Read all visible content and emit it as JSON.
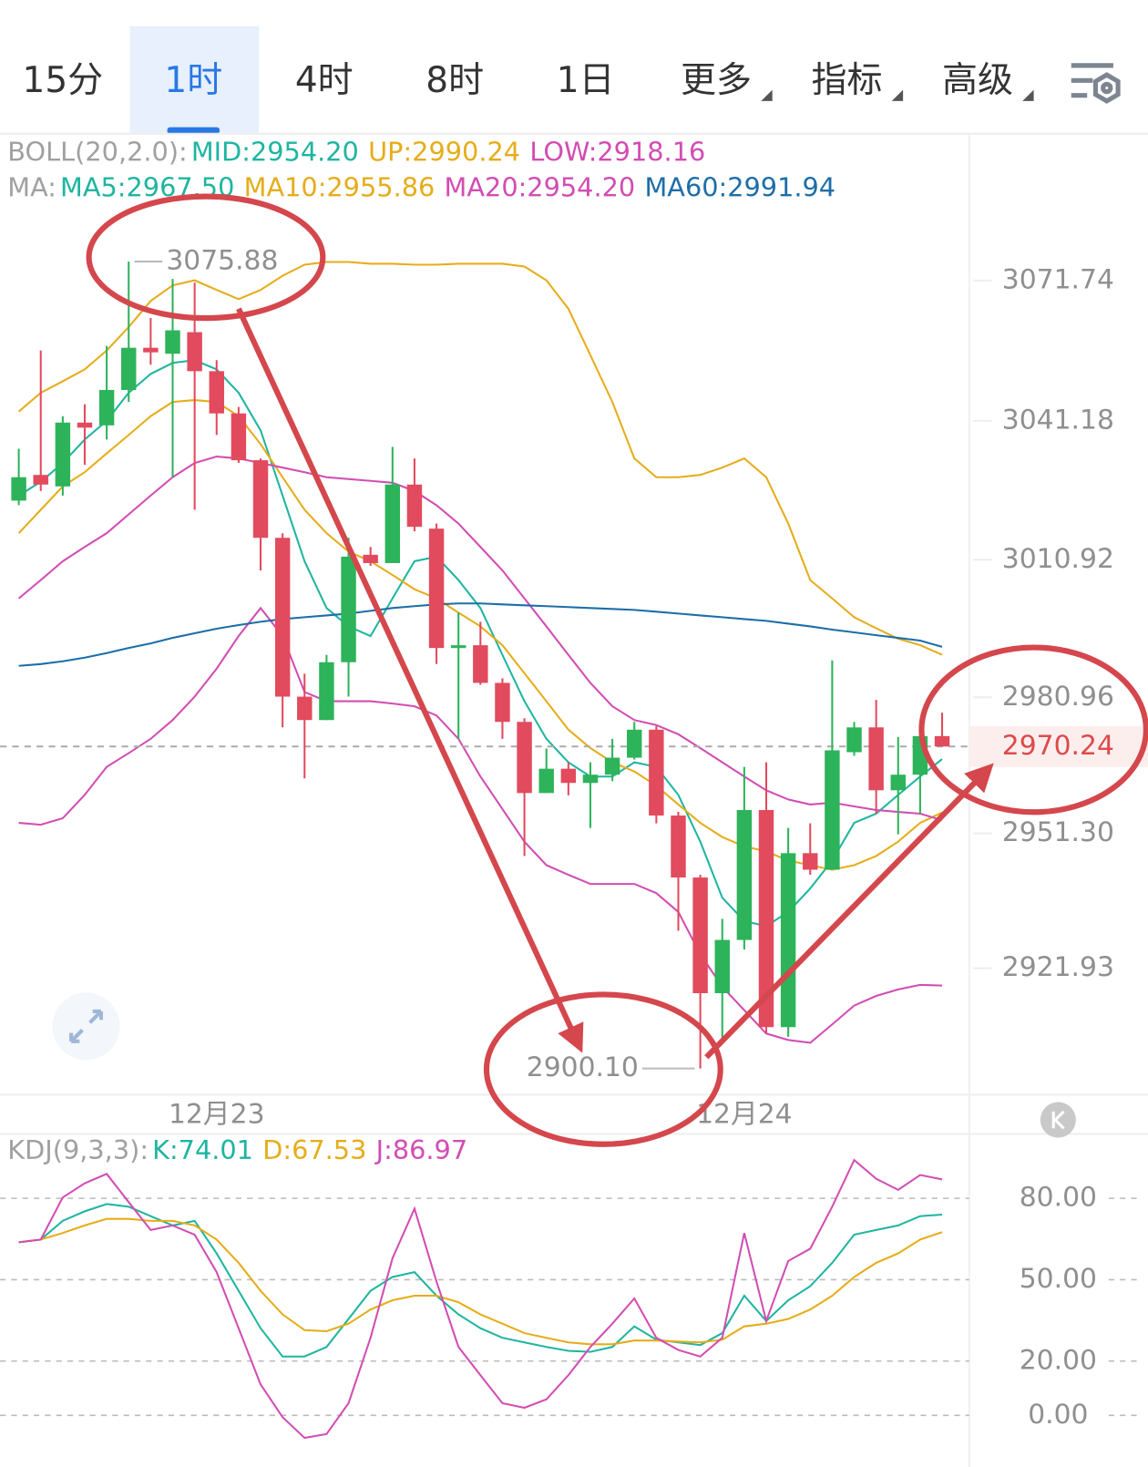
{
  "tabs": [
    {
      "label": "15分"
    },
    {
      "label": "1时"
    },
    {
      "label": "4时"
    },
    {
      "label": "8时"
    },
    {
      "label": "1日"
    },
    {
      "label": "更多",
      "menu": true
    },
    {
      "label": "指标",
      "menu": true
    },
    {
      "label": "高级",
      "menu": true
    }
  ],
  "active_tab": 1,
  "chart_data": [
    {
      "type": "candlestick",
      "categories": [
        null,
        null,
        null,
        null,
        null,
        null,
        null,
        null,
        null,
        "12月23",
        null,
        null,
        null,
        null,
        null,
        null,
        null,
        null,
        null,
        null,
        null,
        null,
        null,
        null,
        null,
        null,
        null,
        null,
        null,
        null,
        null,
        null,
        null,
        "12月24",
        null,
        null,
        null,
        null,
        null,
        null,
        null,
        null,
        null
      ],
      "values": [
        [
          3023.8,
          3035.1,
          3022.8,
          3028.9
        ],
        [
          3029.4,
          3056.5,
          3025.9,
          3027.3
        ],
        [
          3026.9,
          3042.2,
          3024.9,
          3040.8
        ],
        [
          3040.8,
          3044.8,
          3031.6,
          3039.7
        ],
        [
          3040.2,
          3057.5,
          3037.1,
          3047.9
        ],
        [
          3047.9,
          3075.88,
          3045.3,
          3057.1
        ],
        [
          3057.1,
          3063.6,
          3053.4,
          3056.1
        ],
        [
          3055.8,
          3072.1,
          3028.9,
          3060.9
        ],
        [
          3060.5,
          3071.3,
          3021.8,
          3052.0
        ],
        [
          3052.0,
          3054.4,
          3038.1,
          3042.8
        ],
        [
          3042.8,
          3044.2,
          3032.0,
          3032.6
        ],
        [
          3032.6,
          3033.0,
          3008.6,
          3015.7
        ],
        [
          3015.7,
          3016.7,
          2974.4,
          2981.1
        ],
        [
          2981.1,
          2986.1,
          2963.3,
          2976.0
        ],
        [
          2976.0,
          2990.2,
          2976.0,
          2988.6
        ],
        [
          2988.6,
          3015.7,
          2981.1,
          3011.6
        ],
        [
          3012.0,
          3013.7,
          3009.6,
          3010.2
        ],
        [
          3010.2,
          3035.5,
          3010.2,
          3027.3
        ],
        [
          3027.3,
          3033.0,
          3017.1,
          3018.1
        ],
        [
          3017.7,
          3018.8,
          2988.2,
          2991.7
        ],
        [
          2991.7,
          2999.4,
          2971.9,
          2992.3
        ],
        [
          2992.3,
          2997.4,
          2983.7,
          2984.1
        ],
        [
          2984.1,
          2985.1,
          2971.9,
          2975.6
        ],
        [
          2975.6,
          2976.4,
          2946.4,
          2960.1
        ],
        [
          2960.1,
          2969.8,
          2960.1,
          2965.4
        ],
        [
          2965.4,
          2966.8,
          2959.6,
          2962.3
        ],
        [
          2962.3,
          2966.8,
          2952.5,
          2964.1
        ],
        [
          2964.1,
          2971.9,
          2962.7,
          2967.8
        ],
        [
          2967.8,
          2975.6,
          2967.4,
          2973.9
        ],
        [
          2973.9,
          2974.7,
          2953.5,
          2955.2
        ],
        [
          2955.2,
          2956.0,
          2930.1,
          2941.7
        ],
        [
          2941.7,
          2942.3,
          2900.1,
          2916.5
        ],
        [
          2916.5,
          2932.7,
          2906.7,
          2928.1
        ],
        [
          2928.1,
          2965.8,
          2926.0,
          2956.4
        ],
        [
          2956.4,
          2966.8,
          2907.7,
          2909.1
        ],
        [
          2909.1,
          2952.5,
          2907.0,
          2947.0
        ],
        [
          2947.0,
          2953.5,
          2942.3,
          2943.4
        ],
        [
          2943.4,
          2989.0,
          2943.4,
          2969.4
        ],
        [
          2969.0,
          2975.6,
          2968.2,
          2974.4
        ],
        [
          2974.4,
          2980.4,
          2955.6,
          2960.7
        ],
        [
          2960.7,
          2972.3,
          2951.1,
          2964.1
        ],
        [
          2964.1,
          2972.9,
          2955.6,
          2972.5
        ],
        [
          2972.5,
          2977.6,
          2970.5,
          2970.24
        ]
      ],
      "up_color": "#2db35a",
      "down_color": "#e24a5e",
      "ylim": [
        2894.4,
        3087.0
      ],
      "yticks": [
        3071.74,
        3041.18,
        3010.92,
        2980.96,
        {
          "value": 2951.3,
          "label": "2951.30"
        },
        2921.93
      ],
      "last_price": 2970.24,
      "high_label": "3075.88",
      "low_label": "2900.10",
      "indicators": [
        {
          "label": "BOLL(20,2.0):",
          "series": [
            {
              "name": "MID:2954.20",
              "color": "#1fb5a0"
            },
            {
              "name": "UP:2990.24",
              "color": "#e6ad1a",
              "values": [
                3043.2,
                3047.3,
                3049.8,
                3052.4,
                3056.5,
                3061.6,
                3067.3,
                3070.7,
                3071.8,
                3069.7,
                3067.7,
                3069.7,
                3072.8,
                3075.2,
                3075.8,
                3075.8,
                3075.4,
                3075.4,
                3075.2,
                3075.2,
                3075.4,
                3075.4,
                3075.4,
                3074.8,
                3071.8,
                3065.6,
                3055.5,
                3045.3,
                3033.0,
                3028.9,
                3028.9,
                3029.4,
                3031.0,
                3033.0,
                3028.9,
                3018.8,
                3006.5,
                3002.5,
                2998.4,
                2996.0,
                2993.7,
                2992.3,
                2990.24
              ]
            },
            {
              "name": "LOW:2918.16",
              "color": "#d24db3",
              "values": [
                2953.6,
                2953.2,
                2954.6,
                2959.7,
                2965.8,
                2968.8,
                2971.9,
                2976.0,
                2981.1,
                2987.2,
                2994.3,
                3000.4,
                2994.3,
                2982.1,
                2980.1,
                2980.1,
                2980.1,
                2979.6,
                2979.0,
                2977.0,
                2971.9,
                2963.7,
                2956.6,
                2949.5,
                2944.4,
                2942.3,
                2940.3,
                2940.3,
                2940.3,
                2938.3,
                2934.2,
                2925.0,
                2917.9,
                2912.8,
                2907.7,
                2906.3,
                2905.7,
                2909.7,
                2913.8,
                2915.9,
                2917.3,
                2918.3,
                2918.16
              ]
            }
          ]
        },
        {
          "label": "MA:",
          "series": [
            {
              "name": "MA5:2967.50",
              "color": "#1fb5a0",
              "values": [
                3024.9,
                3027.9,
                3032.0,
                3037.1,
                3041.2,
                3047.3,
                3051.4,
                3053.8,
                3054.4,
                3052.4,
                3047.3,
                3039.1,
                3024.9,
                3010.6,
                3000.4,
                2996.4,
                2994.3,
                3002.5,
                3010.6,
                3011.6,
                3006.5,
                3000.4,
                2990.2,
                2980.1,
                2971.9,
                2966.8,
                2963.7,
                2963.7,
                2966.8,
                2965.8,
                2959.7,
                2949.5,
                2937.3,
                2932.2,
                2931.1,
                2934.2,
                2939.3,
                2945.4,
                2953.6,
                2955.6,
                2959.7,
                2963.7,
                2967.5
              ]
            },
            {
              "name": "MA10:2955.86",
              "color": "#e6ad1a",
              "values": [
                3016.7,
                3021.8,
                3026.9,
                3030.0,
                3034.1,
                3038.1,
                3042.2,
                3045.3,
                3045.7,
                3045.3,
                3042.2,
                3036.1,
                3028.9,
                3021.8,
                3016.7,
                3012.7,
                3010.6,
                3007.6,
                3004.5,
                3002.5,
                2999.4,
                2996.4,
                2992.3,
                2986.2,
                2980.1,
                2973.9,
                2969.9,
                2966.8,
                2964.8,
                2961.7,
                2957.6,
                2953.6,
                2950.5,
                2948.5,
                2947.4,
                2945.4,
                2944.4,
                2943.4,
                2944.4,
                2946.4,
                2949.5,
                2953.6,
                2955.86
              ]
            },
            {
              "name": "MA20:2954.20",
              "color": "#d24db3",
              "values": [
                3002.5,
                3006.5,
                3010.6,
                3013.7,
                3016.7,
                3020.8,
                3024.9,
                3028.9,
                3032.0,
                3033.4,
                3033.0,
                3032.0,
                3031.0,
                3030.0,
                3028.9,
                3028.5,
                3028.1,
                3027.7,
                3025.9,
                3022.8,
                3018.8,
                3013.7,
                3008.6,
                3002.5,
                2996.4,
                2990.2,
                2984.1,
                2979.0,
                2976.0,
                2974.9,
                2972.9,
                2969.9,
                2966.8,
                2963.7,
                2960.7,
                2958.7,
                2957.6,
                2958.0,
                2957.2,
                2956.4,
                2956.0,
                2955.6,
                2954.2
              ]
            },
            {
              "name": "MA60:2991.94",
              "color": "#1d6ea8",
              "values": [
                2987.8,
                2988.2,
                2988.8,
                2989.6,
                2990.6,
                2991.7,
                2992.7,
                2993.9,
                2994.9,
                2995.9,
                2996.7,
                2997.4,
                2998.0,
                2998.4,
                2998.8,
                2999.2,
                2999.8,
                3000.4,
                3000.8,
                3001.2,
                3001.4,
                3001.4,
                3001.2,
                3001.0,
                3000.8,
                3000.6,
                3000.4,
                3000.2,
                3000.0,
                2999.6,
                2999.2,
                2998.8,
                2998.4,
                2998.0,
                2997.6,
                2997.0,
                2996.4,
                2995.7,
                2995.1,
                2994.5,
                2993.9,
                2993.3,
                2991.94
              ]
            }
          ]
        }
      ]
    },
    {
      "type": "line",
      "label": "KDJ(9,3,3):",
      "series": [
        {
          "name": "K:74.01",
          "color": "#1fb5a0",
          "values": [
            63.8,
            64.8,
            71.7,
            75.2,
            77.9,
            76.9,
            73.4,
            70.0,
            71.7,
            59.7,
            45.9,
            32.1,
            21.7,
            21.7,
            25.2,
            35.5,
            45.9,
            51.0,
            52.8,
            44.1,
            37.2,
            32.1,
            28.6,
            26.9,
            25.2,
            23.8,
            23.4,
            25.2,
            32.8,
            27.9,
            26.9,
            25.9,
            30.3,
            44.1,
            34.8,
            42.4,
            47.6,
            56.2,
            66.6,
            68.3,
            70.0,
            73.4,
            74.01
          ]
        },
        {
          "name": "D:67.53",
          "color": "#e6ad1a",
          "values": [
            63.8,
            64.8,
            67.2,
            70.0,
            72.4,
            72.4,
            71.7,
            71.7,
            70.0,
            64.8,
            56.2,
            45.9,
            37.2,
            31.4,
            31.0,
            33.8,
            39.0,
            42.4,
            44.1,
            44.1,
            41.7,
            37.2,
            33.8,
            30.3,
            28.6,
            26.9,
            26.2,
            26.2,
            27.6,
            27.6,
            27.2,
            26.9,
            27.9,
            32.8,
            33.8,
            35.5,
            39.0,
            44.1,
            51.0,
            56.2,
            59.7,
            64.8,
            67.53
          ]
        },
        {
          "name": "J:86.97",
          "color": "#d24db3",
          "values": [
            63.8,
            64.8,
            80.3,
            85.5,
            89.0,
            78.6,
            68.3,
            70.0,
            66.6,
            52.8,
            32.1,
            11.4,
            -0.7,
            -8.3,
            -6.9,
            4.5,
            28.6,
            57.9,
            76.2,
            49.3,
            25.2,
            14.8,
            4.5,
            2.8,
            5.9,
            14.8,
            25.2,
            33.8,
            43.1,
            28.6,
            24.1,
            21.7,
            28.6,
            67.2,
            34.8,
            56.9,
            61.4,
            76.9,
            94.1,
            87.2,
            83.1,
            88.6,
            86.97
          ]
        }
      ],
      "ylim": [
        -18,
        102
      ],
      "yticks": [
        {
          "value": 80,
          "label": "80.00"
        },
        {
          "value": 50,
          "label": "50.00"
        },
        {
          "value": 20,
          "label": "20.00"
        },
        {
          "value": 0,
          "label": "0.00"
        }
      ],
      "grid": true
    }
  ]
}
